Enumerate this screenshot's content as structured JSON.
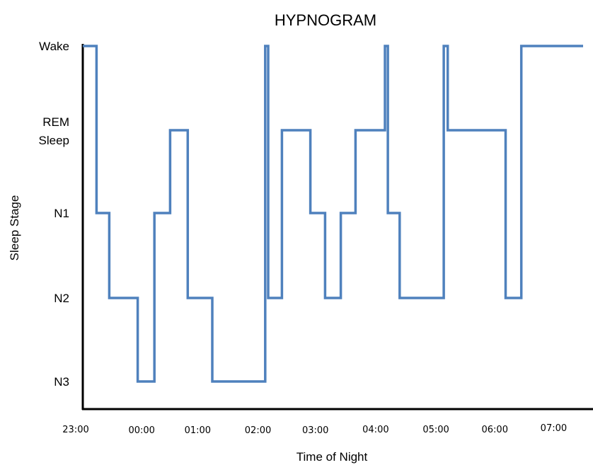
{
  "chart_data": {
    "type": "line",
    "title": "HYPNOGRAM",
    "xlabel": "Time of Night",
    "ylabel": "Sleep Stage",
    "x_ticks": [
      "23:00",
      "00:00",
      "01:00",
      "02:00",
      "03:00",
      "04:00",
      "05:00",
      "06:00",
      "07:00"
    ],
    "y_categories": [
      "N3",
      "N2",
      "N1",
      "REM Sleep",
      "Wake"
    ],
    "y_tick_labels": [
      {
        "stage": "Wake",
        "lines": [
          "Wake"
        ]
      },
      {
        "stage": "REM Sleep",
        "lines": [
          "REM",
          "Sleep"
        ]
      },
      {
        "stage": "N1",
        "lines": [
          "N1"
        ]
      },
      {
        "stage": "N2",
        "lines": [
          "N2"
        ]
      },
      {
        "stage": "N3",
        "lines": [
          "N3"
        ]
      }
    ],
    "x_range": [
      "23:00",
      "07:30"
    ],
    "grid": false,
    "series": [
      {
        "line_color": "#4f81bd",
        "points": [
          {
            "time": "23:00",
            "stage": "Wake"
          },
          {
            "time": "23:14",
            "stage": "Wake"
          },
          {
            "time": "23:14",
            "stage": "N1"
          },
          {
            "time": "23:27",
            "stage": "N1"
          },
          {
            "time": "23:27",
            "stage": "N2"
          },
          {
            "time": "23:56",
            "stage": "N2"
          },
          {
            "time": "23:56",
            "stage": "N3"
          },
          {
            "time": "00:13",
            "stage": "N3"
          },
          {
            "time": "00:13",
            "stage": "N1"
          },
          {
            "time": "00:29",
            "stage": "N1"
          },
          {
            "time": "00:29",
            "stage": "REM Sleep"
          },
          {
            "time": "00:47",
            "stage": "REM Sleep"
          },
          {
            "time": "00:47",
            "stage": "N2"
          },
          {
            "time": "01:12",
            "stage": "N2"
          },
          {
            "time": "01:12",
            "stage": "N3"
          },
          {
            "time": "02:06",
            "stage": "N3"
          },
          {
            "time": "02:06",
            "stage": "Wake"
          },
          {
            "time": "02:09",
            "stage": "Wake"
          },
          {
            "time": "02:09",
            "stage": "N2"
          },
          {
            "time": "02:23",
            "stage": "N2"
          },
          {
            "time": "02:23",
            "stage": "REM Sleep"
          },
          {
            "time": "02:52",
            "stage": "REM Sleep"
          },
          {
            "time": "02:52",
            "stage": "N1"
          },
          {
            "time": "03:07",
            "stage": "N1"
          },
          {
            "time": "03:07",
            "stage": "N2"
          },
          {
            "time": "03:23",
            "stage": "N2"
          },
          {
            "time": "03:23",
            "stage": "N1"
          },
          {
            "time": "03:38",
            "stage": "N1"
          },
          {
            "time": "03:38",
            "stage": "REM Sleep"
          },
          {
            "time": "04:08",
            "stage": "REM Sleep"
          },
          {
            "time": "04:08",
            "stage": "Wake"
          },
          {
            "time": "04:11",
            "stage": "Wake"
          },
          {
            "time": "04:11",
            "stage": "N1"
          },
          {
            "time": "04:23",
            "stage": "N1"
          },
          {
            "time": "04:23",
            "stage": "N2"
          },
          {
            "time": "05:08",
            "stage": "N2"
          },
          {
            "time": "05:08",
            "stage": "Wake"
          },
          {
            "time": "05:12",
            "stage": "Wake"
          },
          {
            "time": "05:12",
            "stage": "REM Sleep"
          },
          {
            "time": "06:11",
            "stage": "REM Sleep"
          },
          {
            "time": "06:11",
            "stage": "N2"
          },
          {
            "time": "06:27",
            "stage": "N2"
          },
          {
            "time": "06:27",
            "stage": "Wake"
          },
          {
            "time": "07:30",
            "stage": "Wake"
          }
        ]
      }
    ]
  },
  "colors": {
    "series": "#4f81bd",
    "axis": "#000000",
    "text": "#000000",
    "background": "#ffffff"
  }
}
